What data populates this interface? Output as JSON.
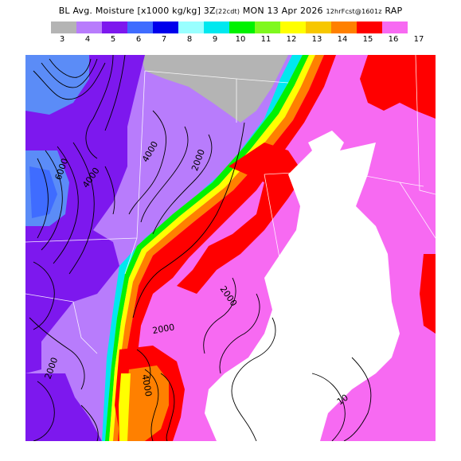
{
  "header": {
    "title_main": "BL Avg. Moisture [x1000 kg/kg]",
    "valid_hour": "3Z",
    "valid_local": "(22cdt)",
    "valid_date": "MON 13 Apr 2026",
    "forecast_info": "12hrFcst@1601z",
    "model": "RAP"
  },
  "legend": {
    "tick_labels": [
      "3",
      "4",
      "5",
      "6",
      "7",
      "8",
      "9",
      "10",
      "11",
      "12",
      "13",
      "14",
      "15",
      "16",
      "17"
    ],
    "colors": [
      "#b4b4b4",
      "#b87cfc",
      "#7d18ee",
      "#3f6cff",
      "#0000ec",
      "#99ffff",
      "#00e8ef",
      "#00f200",
      "#7ff81e",
      "#ffff00",
      "#f7c700",
      "#ff8000",
      "#ff0000",
      "#f76af2"
    ]
  },
  "map": {
    "contour_labels": [
      "2000",
      "4000",
      "4000",
      "6000",
      "2000",
      "2000",
      "2000",
      "10",
      "4000"
    ],
    "colors": {
      "white": "#ffffff",
      "gray": "#b4b4b4",
      "lavender": "#b87cfc",
      "purple": "#7d18ee",
      "blue": "#5b8cf7",
      "deep_blue": "#3f6cff",
      "cyan": "#00e8ef",
      "green": "#00f200",
      "yellow": "#ffff00",
      "orange": "#ff8000",
      "red": "#ff0000",
      "pink": "#f76af2"
    }
  }
}
